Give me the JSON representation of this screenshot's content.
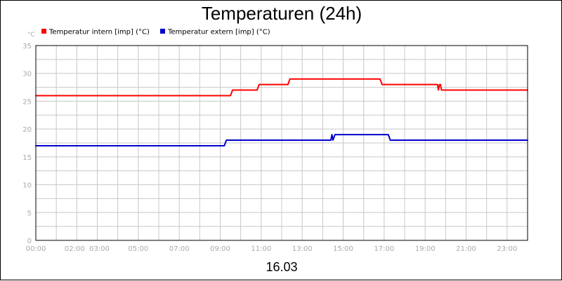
{
  "chart_data": {
    "type": "line",
    "title": "Temperaturen (24h)",
    "date_label": "16.03",
    "ylabel": "°C",
    "ylim": [
      0,
      35
    ],
    "y_ticks": [
      "0",
      "5",
      "10",
      "15",
      "20",
      "25",
      "30",
      "35"
    ],
    "y_tick_values": [
      0,
      5,
      10,
      15,
      20,
      25,
      30,
      35
    ],
    "xlim": [
      0,
      24
    ],
    "x_ticks": [
      "00:00",
      "02:00",
      "03:00",
      "05:00",
      "07:00",
      "09:00",
      "11:00",
      "13:00",
      "15:00",
      "17:00",
      "19:00",
      "21:00",
      "23:00"
    ],
    "x_tick_values": [
      0,
      2,
      3,
      5,
      7,
      9,
      11,
      13,
      15,
      17,
      19,
      21,
      23
    ],
    "x_grid_values": [
      0,
      1,
      2,
      3,
      4,
      5,
      6,
      7,
      8,
      9,
      10,
      11,
      12,
      13,
      14,
      15,
      16,
      17,
      18,
      19,
      20,
      21,
      22,
      23,
      24
    ],
    "y_grid_values": [
      0,
      2.5,
      5,
      7.5,
      10,
      12.5,
      15,
      17.5,
      20,
      22.5,
      25,
      27.5,
      30,
      32.5,
      35
    ],
    "grid": true,
    "legend_position": "top-left",
    "series": [
      {
        "name": "Temperatur intern [imp] (°C)",
        "color": "#ff0000",
        "x": [
          0,
          9.5,
          9.6,
          10.8,
          10.9,
          12.3,
          12.4,
          16.8,
          16.9,
          19.6,
          19.65,
          19.7,
          19.75,
          19.8,
          24
        ],
        "y": [
          26,
          26,
          27,
          27,
          28,
          28,
          29,
          29,
          28,
          28,
          27,
          28,
          28,
          27,
          27
        ]
      },
      {
        "name": "Temperatur extern [imp] (°C)",
        "color": "#0000cc",
        "x": [
          0,
          9.2,
          9.3,
          14.4,
          14.45,
          14.5,
          14.6,
          14.65,
          17.2,
          17.3,
          24
        ],
        "y": [
          17,
          17,
          18,
          18,
          19,
          18,
          19,
          19,
          19,
          18,
          18
        ]
      }
    ]
  }
}
